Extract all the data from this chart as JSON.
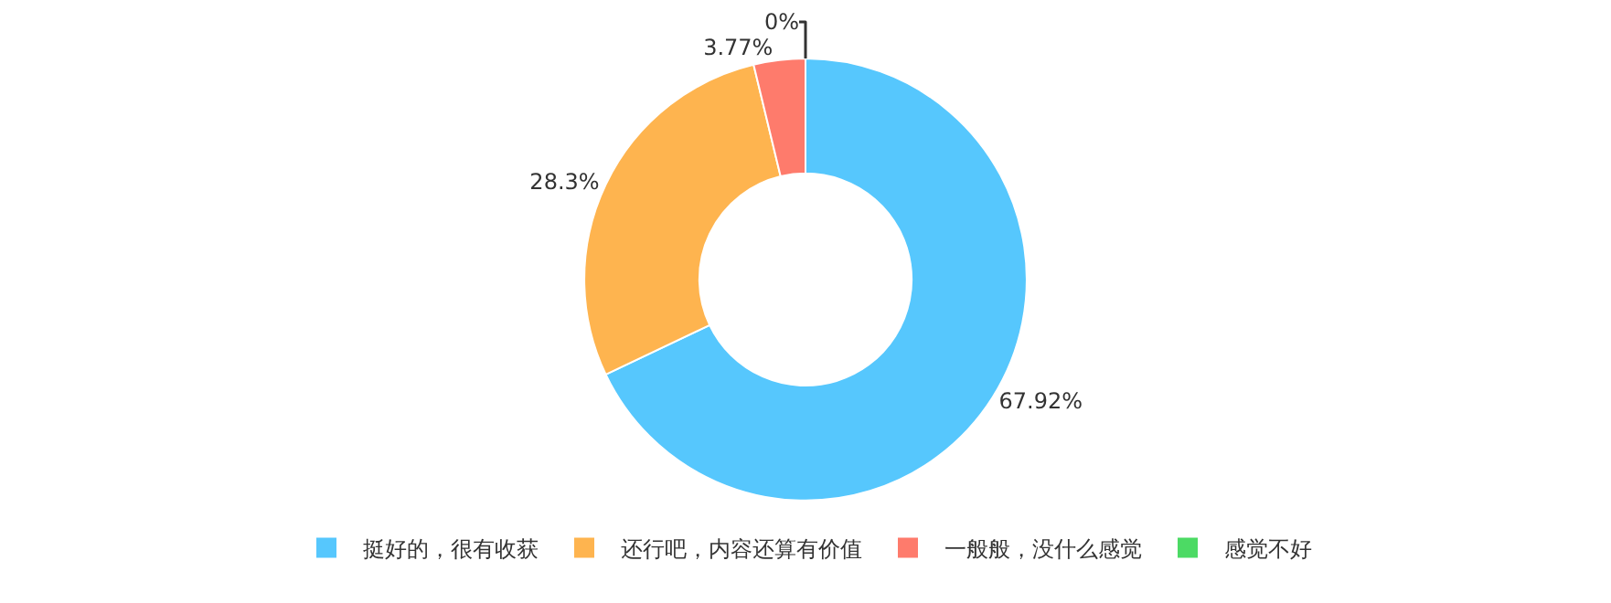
{
  "chart_data": {
    "type": "donut",
    "categories": [
      "挺好的，很有收获",
      "还行吧，内容还算有价值",
      "一般般，没什么感觉",
      "感觉不好"
    ],
    "values": [
      67.92,
      28.3,
      3.77,
      0
    ],
    "colors": [
      "#56c7fd",
      "#feb44f",
      "#fe7b6c",
      "#4cda64"
    ],
    "value_labels": [
      "67.92%",
      "28.3%",
      "3.77%",
      "0%"
    ],
    "legend": "bottom"
  }
}
